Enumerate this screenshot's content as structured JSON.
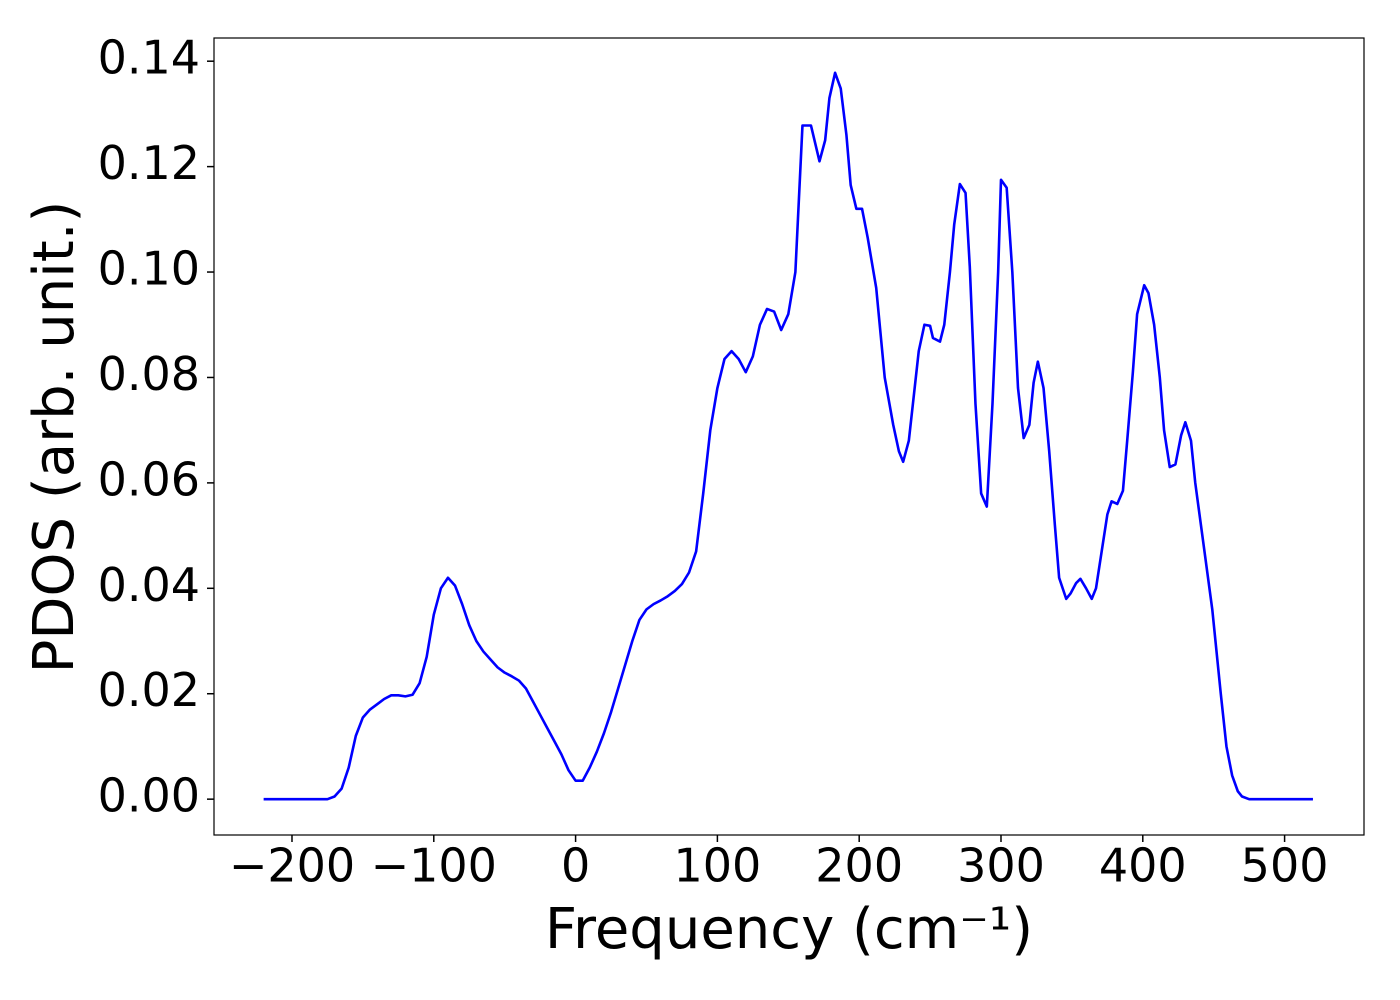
{
  "chart_data": {
    "type": "line",
    "xlabel": "Frequency (cm⁻¹)",
    "ylabel": "PDOS (arb. unit.)",
    "xlim": [
      -255,
      556
    ],
    "ylim": [
      -0.0068,
      0.1444
    ],
    "xticks": [
      {
        "value": -200,
        "label": "−200"
      },
      {
        "value": -100,
        "label": "−100"
      },
      0,
      100,
      200,
      300,
      400,
      500
    ],
    "yticks": [
      {
        "value": 0,
        "label": "0.00"
      },
      {
        "value": 0.02,
        "label": "0.02"
      },
      {
        "value": 0.04,
        "label": "0.04"
      },
      {
        "value": 0.06,
        "label": "0.06"
      },
      {
        "value": 0.08,
        "label": "0.08"
      },
      {
        "value": 0.1,
        "label": "0.10"
      },
      {
        "value": 0.12,
        "label": "0.12"
      },
      {
        "value": 0.14,
        "label": "0.14"
      }
    ],
    "grid": false,
    "x": [
      -220,
      -200,
      -180,
      -175,
      -170,
      -165,
      -160,
      -155,
      -150,
      -145,
      -140,
      -135,
      -130,
      -125,
      -120,
      -115,
      -110,
      -105,
      -100,
      -95,
      -90,
      -85,
      -80,
      -75,
      -70,
      -65,
      -60,
      -55,
      -50,
      -45,
      -40,
      -35,
      -30,
      -25,
      -20,
      -15,
      -10,
      -5,
      0,
      5,
      10,
      15,
      20,
      25,
      30,
      35,
      40,
      45,
      50,
      55,
      60,
      65,
      70,
      75,
      80,
      85,
      90,
      95,
      100,
      105,
      110,
      115,
      120,
      125,
      130,
      135,
      140,
      145,
      150,
      155,
      160,
      166,
      172,
      176,
      179,
      183,
      187,
      191,
      194,
      198,
      202,
      206,
      212,
      218,
      224,
      228,
      231,
      235,
      242,
      246,
      250,
      252,
      257,
      260,
      264,
      267,
      271,
      275,
      278,
      282,
      286,
      290,
      294,
      298,
      300,
      304,
      308,
      312,
      316,
      320,
      323,
      326,
      330,
      334,
      338,
      341,
      346,
      349,
      353,
      356,
      360,
      364,
      367,
      371,
      375,
      378,
      382,
      386,
      389,
      393,
      396,
      401,
      404,
      408,
      412,
      415,
      419,
      423,
      427,
      430,
      434,
      437,
      442,
      449,
      455,
      459,
      463,
      467,
      470,
      475,
      500,
      520
    ],
    "series": [
      {
        "name": "PDOS",
        "color": "#0000ff",
        "values": [
          0,
          0,
          0,
          0,
          0.0005,
          0.002,
          0.006,
          0.012,
          0.0155,
          0.017,
          0.018,
          0.019,
          0.0197,
          0.0197,
          0.0195,
          0.0198,
          0.022,
          0.027,
          0.035,
          0.04,
          0.042,
          0.0405,
          0.037,
          0.033,
          0.03,
          0.028,
          0.0265,
          0.025,
          0.024,
          0.0233,
          0.0225,
          0.021,
          0.0185,
          0.016,
          0.0135,
          0.011,
          0.0085,
          0.0055,
          0.0035,
          0.0035,
          0.006,
          0.009,
          0.0125,
          0.0165,
          0.021,
          0.0255,
          0.03,
          0.034,
          0.036,
          0.037,
          0.0377,
          0.0385,
          0.0395,
          0.0408,
          0.043,
          0.047,
          0.058,
          0.07,
          0.078,
          0.0835,
          0.085,
          0.0835,
          0.081,
          0.084,
          0.09,
          0.093,
          0.0925,
          0.089,
          0.092,
          0.1,
          0.1278,
          0.1278,
          0.121,
          0.125,
          0.133,
          0.1378,
          0.1348,
          0.126,
          0.1165,
          0.112,
          0.112,
          0.1065,
          0.097,
          0.08,
          0.071,
          0.066,
          0.064,
          0.068,
          0.085,
          0.09,
          0.0898,
          0.0875,
          0.0868,
          0.09,
          0.1,
          0.109,
          0.1167,
          0.115,
          0.101,
          0.075,
          0.058,
          0.0555,
          0.075,
          0.1,
          0.1175,
          0.116,
          0.1,
          0.078,
          0.0685,
          0.071,
          0.079,
          0.083,
          0.078,
          0.066,
          0.052,
          0.042,
          0.038,
          0.039,
          0.041,
          0.0418,
          0.04,
          0.038,
          0.04,
          0.047,
          0.054,
          0.0565,
          0.056,
          0.0585,
          0.068,
          0.081,
          0.092,
          0.0975,
          0.096,
          0.09,
          0.08,
          0.07,
          0.063,
          0.0635,
          0.069,
          0.0715,
          0.068,
          0.06,
          0.05,
          0.036,
          0.02,
          0.01,
          0.0045,
          0.0015,
          0.0005,
          0,
          0,
          0
        ]
      }
    ]
  }
}
